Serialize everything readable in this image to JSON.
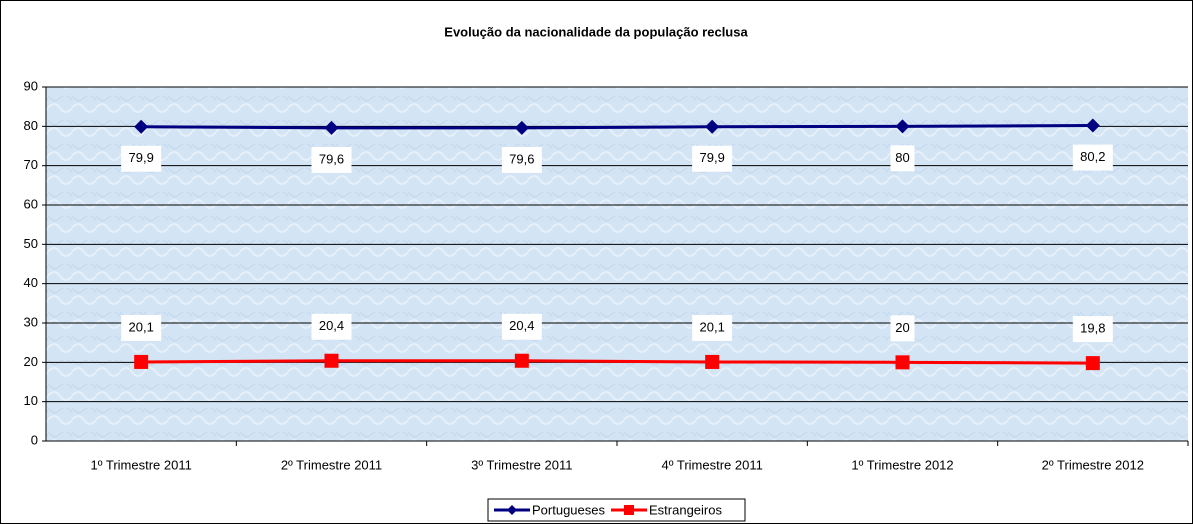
{
  "chart_data": {
    "type": "line",
    "title": "Evolução da nacionalidade da população reclusa",
    "categories": [
      "1º Trimestre 2011",
      "2º Trimestre 2011",
      "3º Trimestre 2011",
      "4º Trimestre 2011",
      "1º Trimestre 2012",
      "2º Trimestre 2012"
    ],
    "series": [
      {
        "name": "Portugueses",
        "color": "#000080",
        "marker": "diamond",
        "values": [
          79.9,
          79.6,
          79.6,
          79.9,
          80,
          80.2
        ],
        "value_labels": [
          "79,9",
          "79,6",
          "79,6",
          "79,9",
          "80",
          "80,2"
        ]
      },
      {
        "name": "Estrangeiros",
        "color": "#ff0000",
        "marker": "square",
        "values": [
          20.1,
          20.4,
          20.4,
          20.1,
          20,
          19.8
        ],
        "value_labels": [
          "20,1",
          "20,4",
          "20,4",
          "20,1",
          "20",
          "19,8"
        ]
      }
    ],
    "ylim": [
      0,
      90
    ],
    "yticks": [
      0,
      10,
      20,
      30,
      40,
      50,
      60,
      70,
      80,
      90
    ],
    "grid": true,
    "legend": "bottom"
  }
}
